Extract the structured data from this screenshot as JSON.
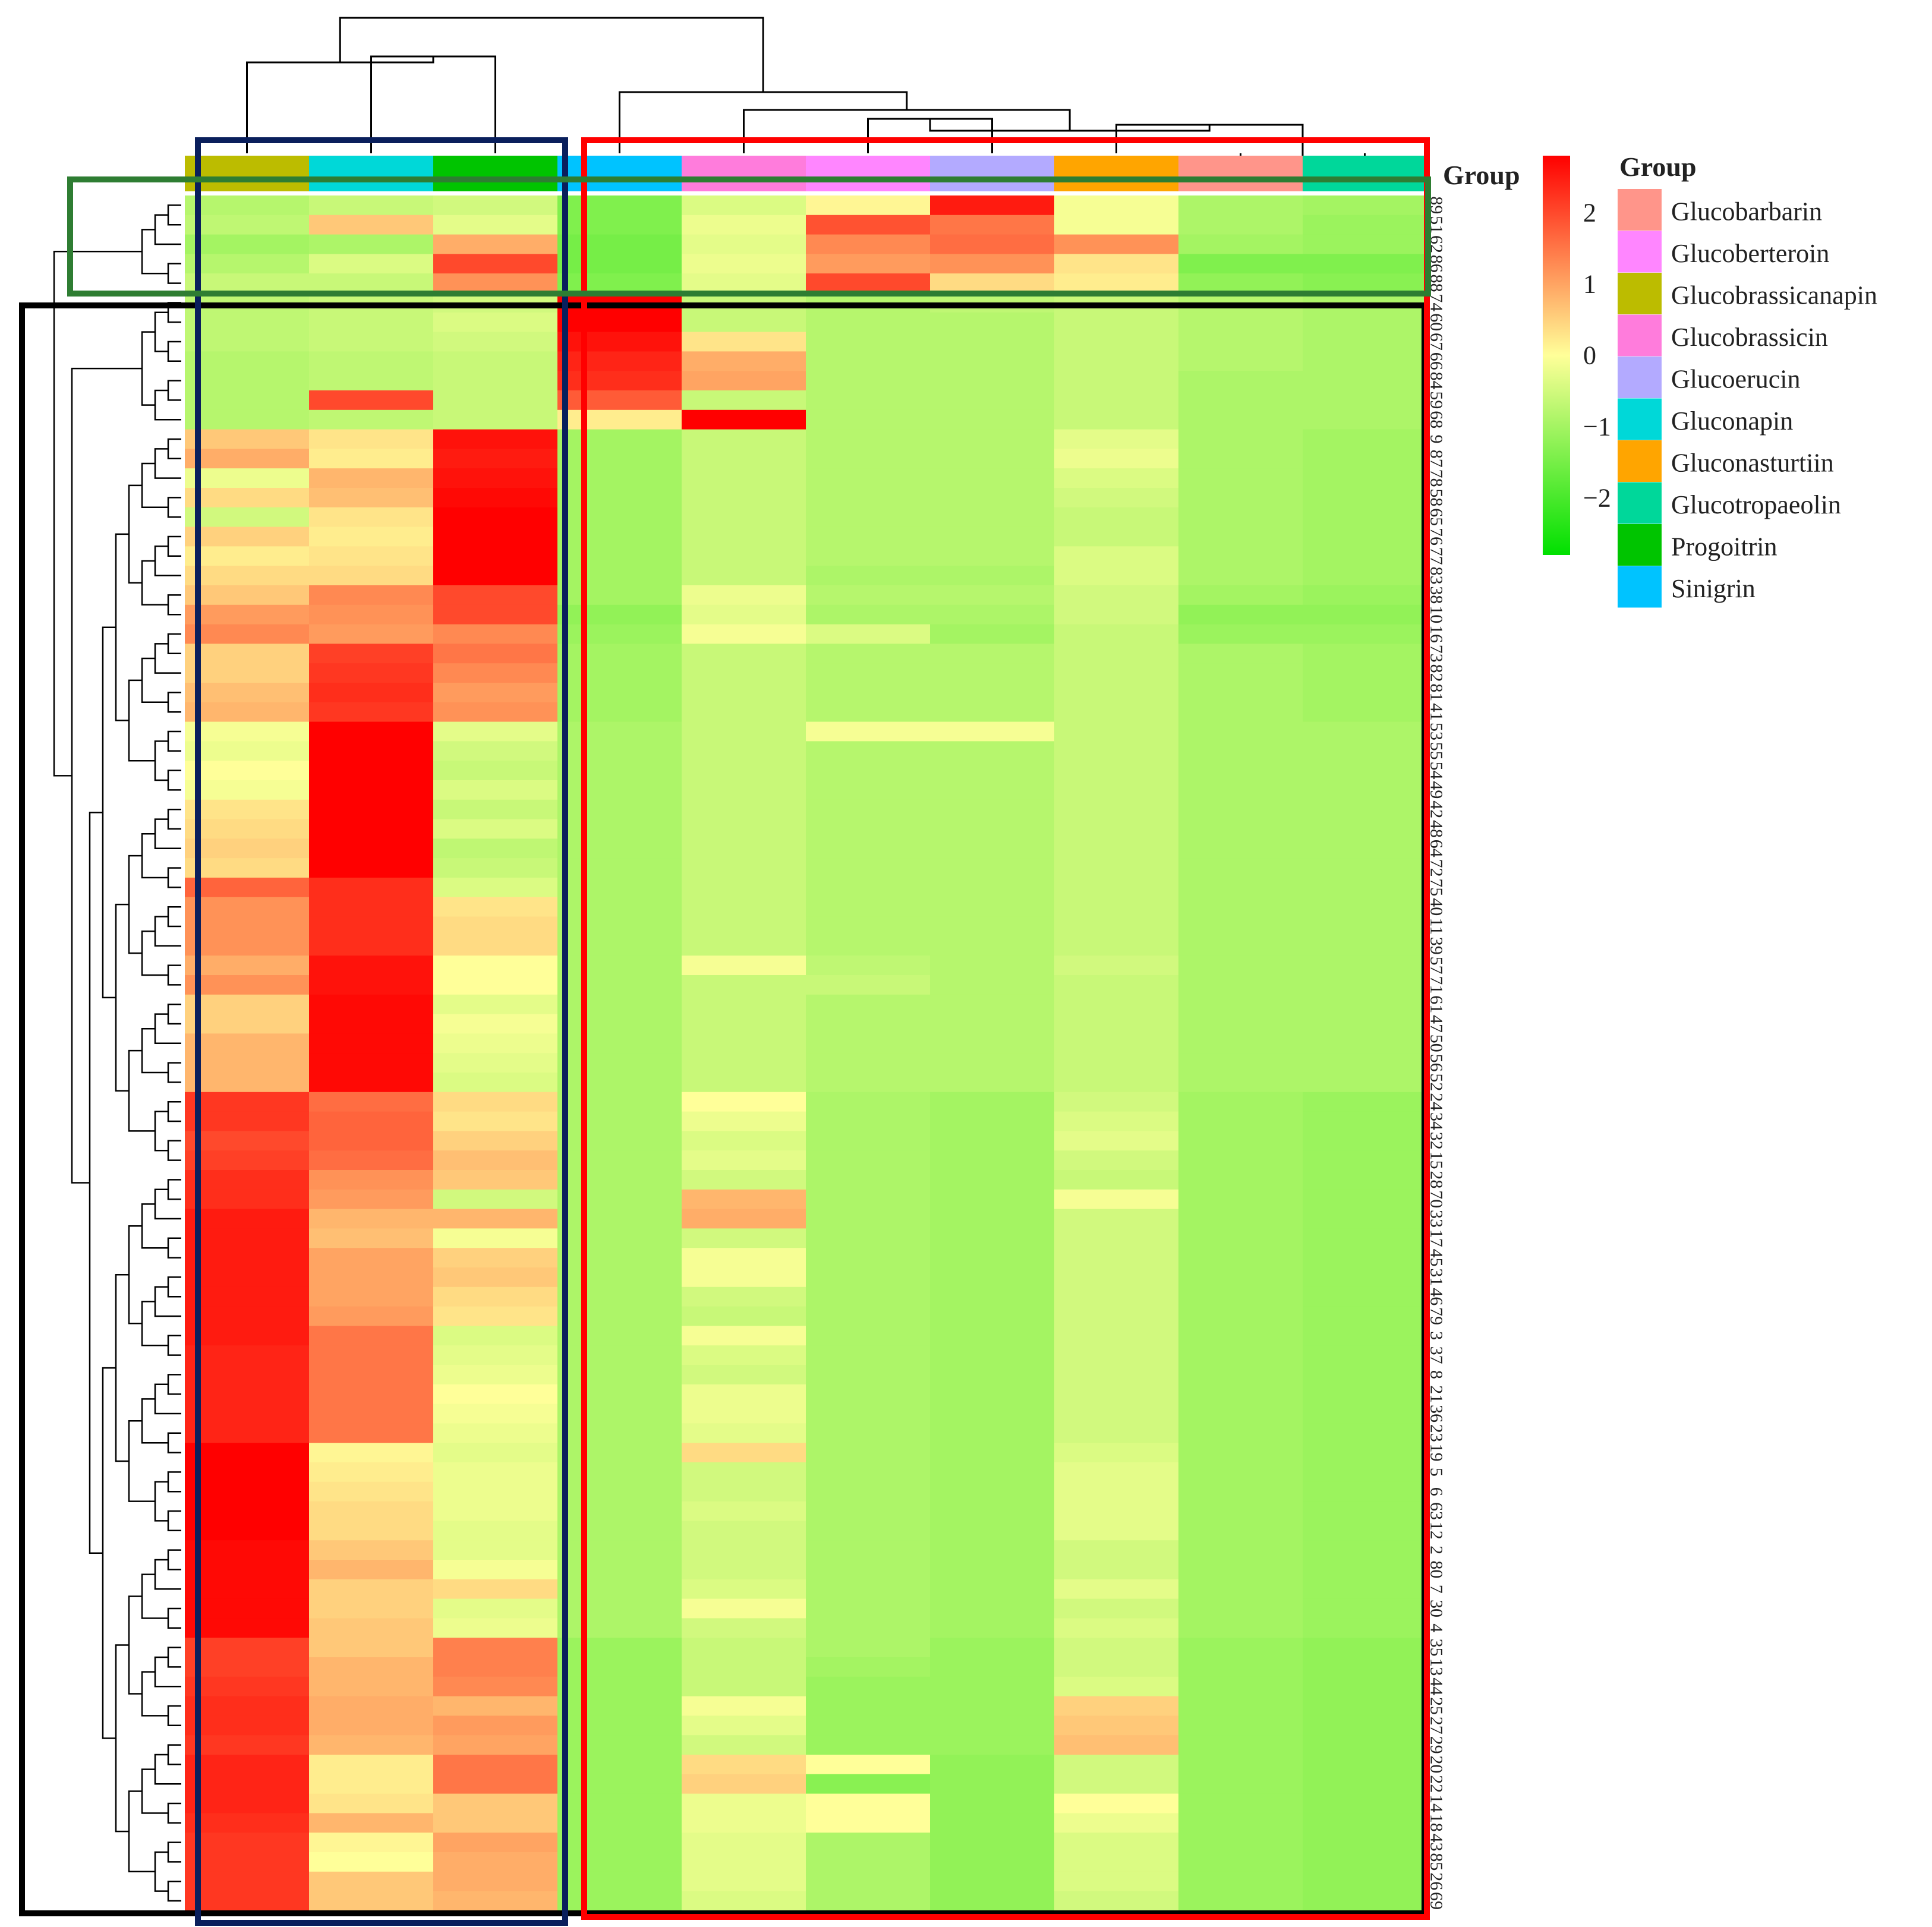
{
  "chart_data": {
    "type": "heatmap",
    "columns": [
      "Glucobrassicanapin",
      "Gluconapin",
      "Progoitrin",
      "Sinigrin",
      "Glucobrassicin",
      "Glucoberteroin",
      "Glucoerucin",
      "Gluconasturtiin",
      "Glucobarbarin",
      "Glucotropaeolin"
    ],
    "rows": [
      "89",
      "51",
      "62",
      "86",
      "88",
      "74",
      "60",
      "67",
      "66",
      "84",
      "59",
      "68",
      "9",
      "87",
      "78",
      "58",
      "65",
      "76",
      "77",
      "83",
      "38",
      "10",
      "16",
      "73",
      "82",
      "81",
      "41",
      "53",
      "55",
      "54",
      "49",
      "42",
      "48",
      "64",
      "72",
      "75",
      "40",
      "11",
      "39",
      "57",
      "71",
      "61",
      "47",
      "50",
      "56",
      "52",
      "24",
      "34",
      "32",
      "15",
      "28",
      "70",
      "33",
      "17",
      "45",
      "31",
      "46",
      "79",
      "3",
      "37",
      "8",
      "21",
      "36",
      "23",
      "19",
      "5",
      "6",
      "63",
      "12",
      "2",
      "80",
      "7",
      "30",
      "4",
      "35",
      "13",
      "44",
      "25",
      "27",
      "29",
      "20",
      "22",
      "14",
      "18",
      "43",
      "85",
      "26",
      "69"
    ],
    "values": [
      [
        -0.8,
        -0.6,
        -0.5,
        -1.4,
        -0.4,
        0.1,
        2.5,
        -0.1,
        -0.9,
        -1.0
      ],
      [
        -0.7,
        0.6,
        -0.3,
        -1.4,
        -0.2,
        1.9,
        1.5,
        -0.1,
        -0.9,
        -1.1
      ],
      [
        -1.0,
        -0.9,
        0.9,
        -1.5,
        -0.3,
        1.3,
        1.6,
        1.2,
        -1.0,
        -1.1
      ],
      [
        -0.8,
        -0.4,
        2.0,
        -1.5,
        -0.2,
        1.1,
        1.2,
        0.3,
        -1.4,
        -1.4
      ],
      [
        -0.6,
        -0.6,
        1.2,
        -1.4,
        -0.3,
        2.0,
        0.4,
        0.2,
        -1.2,
        -1.3
      ],
      [
        -0.7,
        -0.6,
        -0.5,
        2.8,
        -0.6,
        -0.8,
        -0.7,
        -0.6,
        -0.8,
        -0.9
      ],
      [
        -0.7,
        -0.6,
        -0.4,
        2.8,
        -0.6,
        -0.8,
        -0.8,
        -0.6,
        -0.8,
        -0.9
      ],
      [
        -0.7,
        -0.6,
        -0.5,
        2.6,
        0.3,
        -0.8,
        -0.8,
        -0.6,
        -0.8,
        -0.9
      ],
      [
        -0.8,
        -0.7,
        -0.6,
        2.4,
        0.9,
        -0.8,
        -0.8,
        -0.6,
        -0.8,
        -0.9
      ],
      [
        -0.8,
        -0.7,
        -0.6,
        2.3,
        1.0,
        -0.8,
        -0.8,
        -0.6,
        -0.9,
        -0.9
      ],
      [
        -0.8,
        2.0,
        -0.6,
        1.8,
        -0.6,
        -0.8,
        -0.8,
        -0.6,
        -0.9,
        -0.9
      ],
      [
        -0.8,
        -0.7,
        -0.6,
        0.2,
        2.8,
        -0.8,
        -0.8,
        -0.6,
        -0.9,
        -0.9
      ],
      [
        0.6,
        0.3,
        2.6,
        -1.0,
        -0.6,
        -0.8,
        -0.8,
        -0.3,
        -0.9,
        -1.0
      ],
      [
        0.9,
        0.2,
        2.5,
        -1.0,
        -0.6,
        -0.8,
        -0.8,
        -0.2,
        -0.9,
        -1.0
      ],
      [
        -0.2,
        0.8,
        2.6,
        -1.0,
        -0.6,
        -0.8,
        -0.8,
        -0.4,
        -0.9,
        -1.0
      ],
      [
        0.4,
        0.7,
        2.7,
        -1.0,
        -0.6,
        -0.8,
        -0.8,
        -0.5,
        -0.9,
        -1.0
      ],
      [
        -0.5,
        0.3,
        2.8,
        -1.0,
        -0.6,
        -0.8,
        -0.8,
        -0.6,
        -0.9,
        -1.0
      ],
      [
        0.5,
        0.2,
        2.8,
        -1.0,
        -0.6,
        -0.8,
        -0.8,
        -0.6,
        -0.9,
        -1.0
      ],
      [
        0.2,
        0.3,
        2.8,
        -1.0,
        -0.6,
        -0.8,
        -0.8,
        -0.4,
        -0.9,
        -1.0
      ],
      [
        0.4,
        0.4,
        2.8,
        -1.0,
        -0.6,
        -0.9,
        -0.9,
        -0.4,
        -0.9,
        -1.0
      ],
      [
        0.6,
        1.3,
        2.0,
        -1.0,
        -0.2,
        -0.8,
        -0.8,
        -0.5,
        -1.0,
        -1.1
      ],
      [
        1.1,
        1.2,
        2.0,
        -1.2,
        -0.3,
        -0.9,
        -0.9,
        -0.5,
        -1.2,
        -1.2
      ],
      [
        1.3,
        1.1,
        1.3,
        -1.1,
        -0.1,
        -0.4,
        -1.0,
        -0.6,
        -1.1,
        -1.1
      ],
      [
        0.5,
        2.1,
        1.5,
        -1.0,
        -0.6,
        -0.8,
        -0.8,
        -0.6,
        -0.9,
        -1.0
      ],
      [
        0.5,
        2.2,
        1.3,
        -1.0,
        -0.6,
        -0.8,
        -0.8,
        -0.6,
        -0.9,
        -1.0
      ],
      [
        0.7,
        2.3,
        1.1,
        -1.0,
        -0.6,
        -0.8,
        -0.8,
        -0.6,
        -0.9,
        -1.0
      ],
      [
        0.8,
        2.2,
        1.2,
        -1.0,
        -0.6,
        -0.8,
        -0.8,
        -0.6,
        -0.9,
        -1.0
      ],
      [
        -0.1,
        2.8,
        -0.3,
        -0.9,
        -0.6,
        -0.1,
        -0.1,
        -0.6,
        -0.9,
        -0.9
      ],
      [
        -0.2,
        2.8,
        -0.5,
        -0.9,
        -0.6,
        -0.8,
        -0.8,
        -0.6,
        -0.9,
        -0.9
      ],
      [
        0.0,
        2.8,
        -0.6,
        -0.9,
        -0.6,
        -0.8,
        -0.8,
        -0.6,
        -0.9,
        -0.9
      ],
      [
        -0.1,
        2.8,
        -0.4,
        -0.9,
        -0.6,
        -0.8,
        -0.8,
        -0.6,
        -0.9,
        -0.9
      ],
      [
        0.3,
        2.8,
        -0.6,
        -0.9,
        -0.6,
        -0.8,
        -0.8,
        -0.6,
        -0.9,
        -0.9
      ],
      [
        0.4,
        2.8,
        -0.4,
        -0.9,
        -0.6,
        -0.8,
        -0.8,
        -0.6,
        -0.9,
        -0.9
      ],
      [
        0.5,
        2.8,
        -0.7,
        -0.9,
        -0.6,
        -0.8,
        -0.8,
        -0.6,
        -0.9,
        -0.9
      ],
      [
        0.4,
        2.8,
        -0.6,
        -0.9,
        -0.6,
        -0.8,
        -0.8,
        -0.6,
        -0.9,
        -0.9
      ],
      [
        1.7,
        2.3,
        -0.4,
        -0.9,
        -0.6,
        -0.8,
        -0.8,
        -0.6,
        -0.9,
        -0.9
      ],
      [
        1.2,
        2.3,
        0.3,
        -0.9,
        -0.6,
        -0.8,
        -0.8,
        -0.6,
        -0.9,
        -0.9
      ],
      [
        1.2,
        2.3,
        0.4,
        -0.9,
        -0.6,
        -0.8,
        -0.8,
        -0.6,
        -0.9,
        -0.9
      ],
      [
        1.2,
        2.3,
        0.4,
        -0.9,
        -0.6,
        -0.8,
        -0.8,
        -0.6,
        -0.9,
        -0.9
      ],
      [
        0.9,
        2.6,
        0.0,
        -0.9,
        -0.1,
        -0.7,
        -0.8,
        -0.5,
        -0.9,
        -0.9
      ],
      [
        1.2,
        2.6,
        0.0,
        -0.9,
        -0.6,
        -0.6,
        -0.8,
        -0.6,
        -0.9,
        -0.9
      ],
      [
        0.5,
        2.7,
        -0.3,
        -0.9,
        -0.6,
        -0.8,
        -0.8,
        -0.6,
        -0.9,
        -0.9
      ],
      [
        0.5,
        2.7,
        -0.1,
        -0.9,
        -0.6,
        -0.8,
        -0.8,
        -0.6,
        -0.9,
        -0.9
      ],
      [
        0.8,
        2.7,
        -0.2,
        -0.9,
        -0.6,
        -0.8,
        -0.8,
        -0.6,
        -0.9,
        -0.9
      ],
      [
        0.8,
        2.7,
        -0.3,
        -0.9,
        -0.6,
        -0.8,
        -0.8,
        -0.6,
        -0.9,
        -0.9
      ],
      [
        0.8,
        2.7,
        -0.4,
        -0.9,
        -0.6,
        -0.8,
        -0.8,
        -0.6,
        -0.9,
        -0.9
      ],
      [
        2.2,
        1.6,
        0.4,
        -0.9,
        0.0,
        -0.9,
        -1.0,
        -0.5,
        -1.0,
        -1.1
      ],
      [
        2.2,
        1.7,
        0.3,
        -0.9,
        -0.2,
        -0.9,
        -1.0,
        -0.4,
        -1.0,
        -1.1
      ],
      [
        2.0,
        1.7,
        0.5,
        -0.9,
        -0.4,
        -0.9,
        -1.0,
        -0.3,
        -1.0,
        -1.1
      ],
      [
        2.1,
        1.6,
        0.7,
        -0.9,
        -0.3,
        -0.9,
        -1.0,
        -0.5,
        -1.0,
        -1.1
      ],
      [
        2.3,
        1.2,
        0.6,
        -0.9,
        -0.5,
        -0.9,
        -1.0,
        -0.6,
        -1.0,
        -1.1
      ],
      [
        2.3,
        1.1,
        -0.5,
        -0.9,
        0.8,
        -0.9,
        -1.0,
        -0.1,
        -1.0,
        -1.1
      ],
      [
        2.5,
        0.8,
        0.8,
        -0.9,
        0.9,
        -0.9,
        -1.0,
        -0.5,
        -1.0,
        -1.1
      ],
      [
        2.5,
        0.7,
        -0.1,
        -0.9,
        -0.5,
        -0.9,
        -1.0,
        -0.5,
        -1.0,
        -1.1
      ],
      [
        2.5,
        1.0,
        0.5,
        -0.9,
        -0.1,
        -0.9,
        -1.0,
        -0.5,
        -1.0,
        -1.1
      ],
      [
        2.5,
        1.0,
        0.6,
        -0.9,
        -0.1,
        -0.9,
        -1.0,
        -0.5,
        -1.0,
        -1.1
      ],
      [
        2.5,
        1.0,
        0.4,
        -0.9,
        -0.5,
        -0.9,
        -1.0,
        -0.5,
        -1.0,
        -1.1
      ],
      [
        2.5,
        1.1,
        0.3,
        -0.9,
        -0.6,
        -0.9,
        -1.0,
        -0.5,
        -1.0,
        -1.1
      ],
      [
        2.5,
        1.5,
        -0.4,
        -0.9,
        -0.1,
        -0.9,
        -1.0,
        -0.5,
        -1.0,
        -1.1
      ],
      [
        2.4,
        1.5,
        -0.3,
        -0.9,
        -0.4,
        -0.9,
        -1.0,
        -0.5,
        -1.0,
        -1.1
      ],
      [
        2.4,
        1.5,
        -0.2,
        -0.9,
        -0.5,
        -0.9,
        -1.0,
        -0.5,
        -1.0,
        -1.1
      ],
      [
        2.4,
        1.5,
        0.0,
        -0.9,
        -0.2,
        -0.9,
        -1.0,
        -0.5,
        -1.0,
        -1.1
      ],
      [
        2.4,
        1.5,
        -0.1,
        -0.9,
        -0.2,
        -0.9,
        -1.0,
        -0.5,
        -1.0,
        -1.1
      ],
      [
        2.4,
        1.5,
        -0.2,
        -0.9,
        -0.3,
        -0.9,
        -1.0,
        -0.5,
        -1.0,
        -1.1
      ],
      [
        2.8,
        0.1,
        -0.3,
        -0.9,
        0.4,
        -0.9,
        -1.0,
        -0.4,
        -1.0,
        -1.1
      ],
      [
        2.8,
        0.2,
        -0.2,
        -0.9,
        -0.5,
        -0.9,
        -1.0,
        -0.3,
        -1.0,
        -1.1
      ],
      [
        2.8,
        0.3,
        -0.2,
        -0.9,
        -0.5,
        -0.9,
        -1.0,
        -0.3,
        -1.0,
        -1.1
      ],
      [
        2.8,
        0.4,
        -0.2,
        -0.9,
        -0.4,
        -0.9,
        -1.0,
        -0.3,
        -1.0,
        -1.1
      ],
      [
        2.8,
        0.4,
        -0.3,
        -0.9,
        -0.5,
        -0.9,
        -1.0,
        -0.3,
        -1.0,
        -1.1
      ],
      [
        2.7,
        0.6,
        -0.3,
        -0.9,
        -0.5,
        -0.9,
        -1.0,
        -0.5,
        -1.0,
        -1.1
      ],
      [
        2.7,
        0.8,
        -0.1,
        -0.9,
        -0.5,
        -0.9,
        -1.0,
        -0.5,
        -1.0,
        -1.1
      ],
      [
        2.7,
        0.5,
        0.4,
        -0.9,
        -0.4,
        -0.9,
        -1.0,
        -0.3,
        -1.0,
        -1.1
      ],
      [
        2.7,
        0.5,
        -0.3,
        -0.9,
        -0.1,
        -0.9,
        -1.0,
        -0.5,
        -1.0,
        -1.1
      ],
      [
        2.7,
        0.6,
        -0.2,
        -0.9,
        -0.5,
        -0.9,
        -1.0,
        -0.4,
        -1.0,
        -1.1
      ],
      [
        2.1,
        0.6,
        1.4,
        -1.1,
        -0.6,
        -0.9,
        -1.1,
        -0.5,
        -1.1,
        -1.2
      ],
      [
        2.1,
        0.8,
        1.4,
        -1.1,
        -0.6,
        -1.0,
        -1.1,
        -0.5,
        -1.1,
        -1.2
      ],
      [
        2.2,
        0.8,
        1.3,
        -1.1,
        -0.6,
        -1.1,
        -1.1,
        -0.4,
        -1.1,
        -1.2
      ],
      [
        2.3,
        0.9,
        0.8,
        -1.1,
        -0.1,
        -1.1,
        -1.1,
        0.5,
        -1.1,
        -1.2
      ],
      [
        2.3,
        0.9,
        1.1,
        -1.1,
        -0.3,
        -1.1,
        -1.1,
        0.6,
        -1.1,
        -1.2
      ],
      [
        2.2,
        0.8,
        1.0,
        -1.1,
        -0.5,
        -1.1,
        -1.1,
        0.7,
        -1.1,
        -1.2
      ],
      [
        2.4,
        0.2,
        1.5,
        -1.1,
        0.4,
        0.0,
        -1.2,
        -0.5,
        -1.1,
        -1.2
      ],
      [
        2.4,
        0.2,
        1.5,
        -1.1,
        0.5,
        -1.3,
        -1.2,
        -0.5,
        -1.1,
        -1.2
      ],
      [
        2.4,
        0.3,
        0.6,
        -1.1,
        -0.2,
        0.0,
        -1.2,
        0.0,
        -1.1,
        -1.2
      ],
      [
        2.3,
        0.8,
        0.6,
        -1.1,
        -0.2,
        0.0,
        -1.2,
        -0.2,
        -1.1,
        -1.2
      ],
      [
        2.2,
        0.1,
        1.0,
        -1.1,
        -0.3,
        -0.9,
        -1.2,
        -0.4,
        -1.1,
        -1.2
      ],
      [
        2.2,
        0.0,
        0.9,
        -1.1,
        -0.3,
        -0.9,
        -1.2,
        -0.4,
        -1.1,
        -1.2
      ],
      [
        2.2,
        0.6,
        0.9,
        -1.1,
        -0.3,
        -0.9,
        -1.2,
        -0.4,
        -1.1,
        -1.2
      ],
      [
        2.2,
        0.6,
        0.8,
        -1.1,
        -0.4,
        -0.9,
        -1.2,
        -0.5,
        -1.1,
        -1.2
      ]
    ],
    "column_annotation_label": "Group",
    "group_legend": [
      {
        "name": "Glucobarbarin",
        "color": "#ff958a"
      },
      {
        "name": "Glucoberteroin",
        "color": "#ff86ff"
      },
      {
        "name": "Glucobrassicanapin",
        "color": "#bcbc00"
      },
      {
        "name": "Glucobrassicin",
        "color": "#ff7cdc"
      },
      {
        "name": "Glucoerucin",
        "color": "#b3aaff"
      },
      {
        "name": "Gluconapin",
        "color": "#00d8d8"
      },
      {
        "name": "Gluconasturtiin",
        "color": "#ffa500"
      },
      {
        "name": "Glucotropaeolin",
        "color": "#00d79a"
      },
      {
        "name": "Progoitrin",
        "color": "#00c400"
      },
      {
        "name": "Sinigrin",
        "color": "#00c3ff"
      }
    ],
    "color_scale": {
      "min": -2.8,
      "max": 2.8,
      "ticks": [
        "2",
        "1",
        "0",
        "−1",
        "−2"
      ],
      "tick_values": [
        2,
        1,
        0,
        -1,
        -2
      ],
      "low_color": "#00e000",
      "mid_color": "#ffff99",
      "high_color": "#ff0000"
    },
    "column_dendrogram_order": [
      "Glucobrassicanapin",
      "Gluconapin",
      "Progoitrin",
      "Sinigrin",
      "Glucobrassicin",
      "Glucoberteroin",
      "Glucoerucin",
      "Gluconasturtiin",
      "Glucobarbarin",
      "Glucotropaeolin"
    ],
    "highlight_boxes": [
      {
        "name": "blue-box",
        "color": "#0a1f5c",
        "columns": [
          "Glucobrassicanapin",
          "Gluconapin",
          "Progoitrin"
        ]
      },
      {
        "name": "red-box",
        "color": "#ff0000",
        "columns": [
          "Sinigrin",
          "Glucotropaeolin"
        ]
      },
      {
        "name": "green-box",
        "color": "#2e7d32",
        "rows": [
          "89",
          "88"
        ]
      },
      {
        "name": "black-box",
        "color": "#000000",
        "rows": [
          "74",
          "69"
        ]
      }
    ]
  }
}
